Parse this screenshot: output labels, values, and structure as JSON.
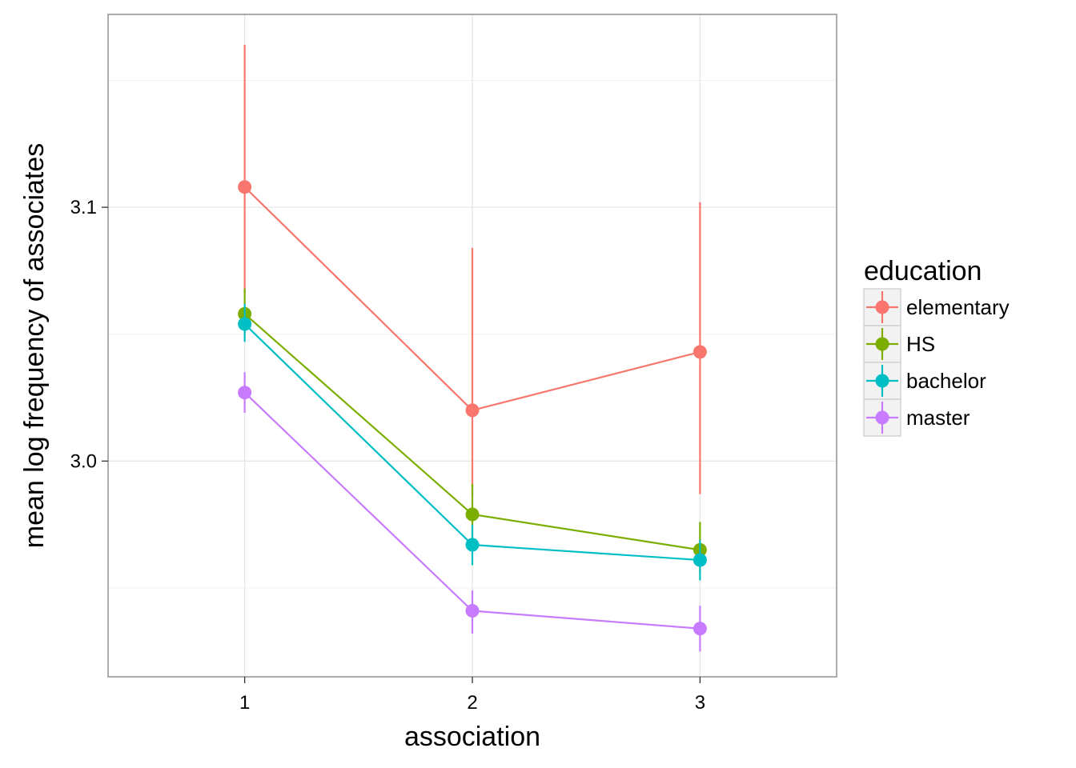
{
  "chart_data": {
    "type": "line",
    "title": "",
    "xlabel": "association",
    "ylabel": "mean log frequency of associates",
    "x": [
      1,
      2,
      3
    ],
    "x_tick_labels": [
      "1",
      "2",
      "3"
    ],
    "xlim": [
      0.4,
      3.6
    ],
    "y_ticks": [
      3.0,
      3.1
    ],
    "y_tick_labels": [
      "3.0",
      "3.1"
    ],
    "ylim": [
      2.915,
      3.176
    ],
    "grid": true,
    "error_bars": true,
    "legend": {
      "title": "education",
      "position": "right"
    },
    "series": [
      {
        "name": "elementary",
        "color": "#F8766D",
        "values": [
          3.108,
          3.02,
          3.043
        ],
        "error_low": [
          3.066,
          2.986,
          2.987
        ],
        "error_high": [
          3.164,
          3.084,
          3.102
        ]
      },
      {
        "name": "HS",
        "color": "#7CAE00",
        "values": [
          3.058,
          2.979,
          2.965
        ],
        "error_low": [
          3.05,
          2.969,
          2.956
        ],
        "error_high": [
          3.068,
          2.991,
          2.976
        ]
      },
      {
        "name": "bachelor",
        "color": "#00BFC4",
        "values": [
          3.054,
          2.967,
          2.961
        ],
        "error_low": [
          3.047,
          2.959,
          2.953
        ],
        "error_high": [
          3.062,
          2.975,
          2.969
        ]
      },
      {
        "name": "master",
        "color": "#C77CFF",
        "values": [
          3.027,
          2.941,
          2.934
        ],
        "error_low": [
          3.019,
          2.932,
          2.925
        ],
        "error_high": [
          3.035,
          2.949,
          2.943
        ]
      }
    ]
  }
}
